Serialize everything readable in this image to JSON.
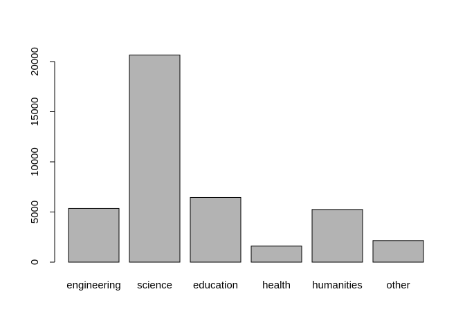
{
  "chart_data": {
    "type": "bar",
    "title": "",
    "xlabel": "",
    "ylabel": "",
    "categories": [
      "engineering",
      "science",
      "education",
      "health",
      "humanities",
      "other"
    ],
    "values": [
      5350,
      20650,
      6450,
      1600,
      5250,
      2150
    ],
    "ylim": [
      0,
      21000
    ],
    "yticks": [
      0,
      5000,
      10000,
      15000,
      20000
    ],
    "ytick_labels": [
      "0",
      "5000",
      "10000",
      "15000",
      "20000"
    ],
    "bar_color": "#b3b3b3",
    "bar_border_color": "#000000",
    "grid": false,
    "legend": "none"
  }
}
